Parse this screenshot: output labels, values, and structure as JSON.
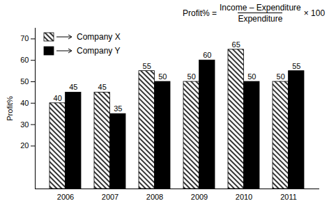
{
  "chart_data": {
    "type": "bar",
    "annotation": {
      "lhs": "Profit% =",
      "numerator": "Income – Expenditure",
      "denominator": "Expenditure",
      "rhs": "× 100"
    },
    "categories": [
      "2006",
      "2007",
      "2008",
      "2009",
      "2010",
      "2011"
    ],
    "series": [
      {
        "name": "Company X",
        "color": "#000000",
        "line_style": "hatched",
        "values": [
          40,
          45,
          55,
          50,
          65,
          50
        ]
      },
      {
        "name": "Company Y",
        "color": "#000000",
        "line_style": "solid",
        "values": [
          45,
          35,
          50,
          60,
          50,
          55
        ]
      }
    ],
    "y_label": "Profit%",
    "ylim": [
      0,
      75
    ],
    "yticks": [
      20,
      30,
      40,
      50,
      60,
      70
    ],
    "data_labels": true,
    "legend": "upper left"
  }
}
